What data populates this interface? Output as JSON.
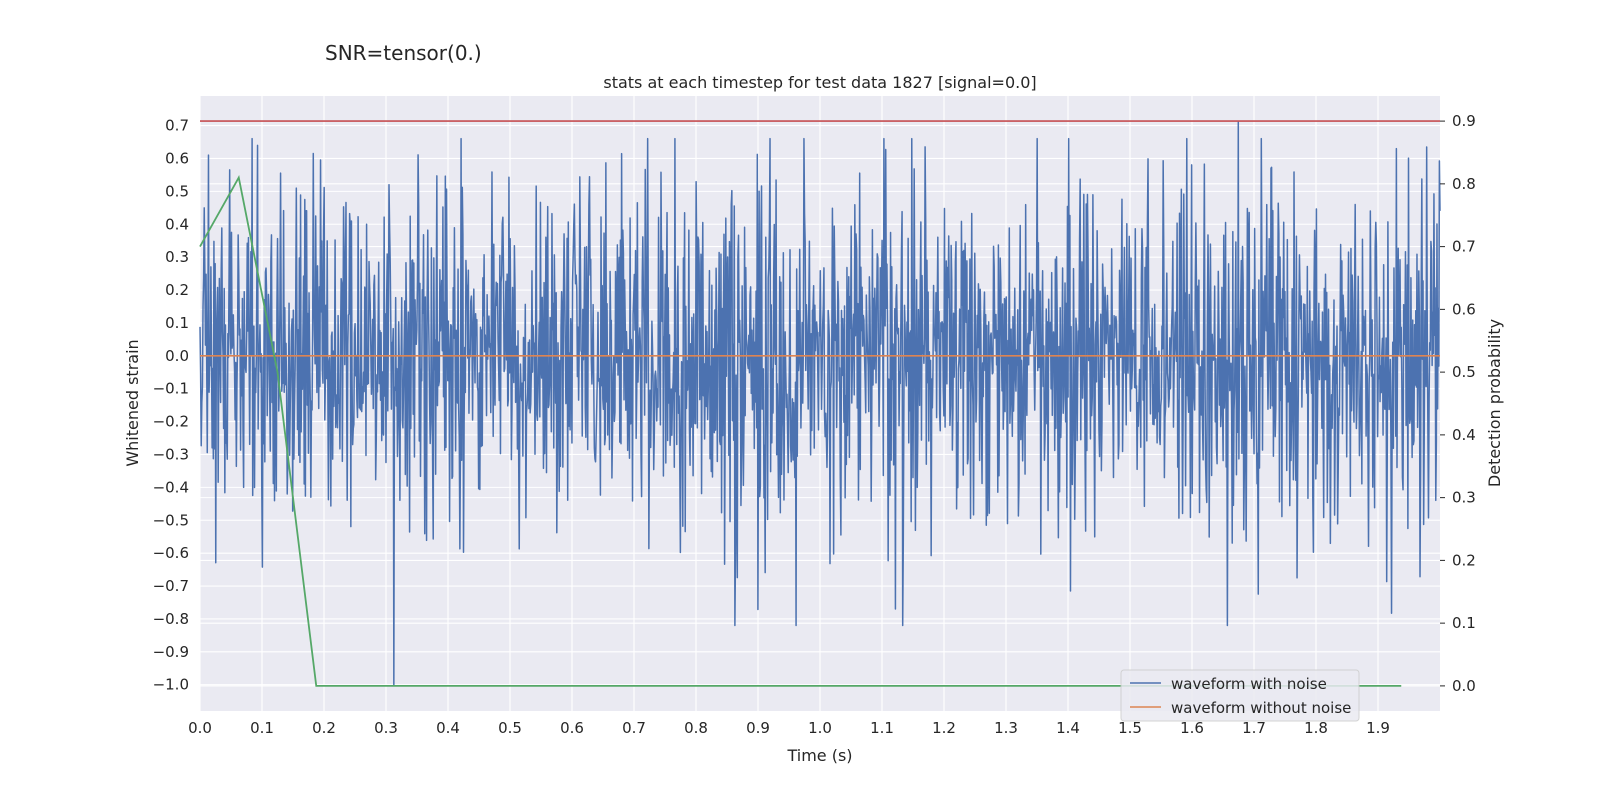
{
  "suptitle": "SNR=tensor(0.)",
  "colors": {
    "noisy": "#4c72b0",
    "clean": "#dd8452",
    "detection": "#55a868",
    "threshold": "#c44e52",
    "axes_bg": "#eaeaf2",
    "grid": "#ffffff"
  },
  "chart_data": {
    "type": "line",
    "title": "stats at each timestep for test data 1827 [signal=0.0]",
    "xlabel": "Time (s)",
    "ylabel": "Whitened strain",
    "ylabel_right": "Detection probability",
    "xlim": [
      0.0,
      2.0
    ],
    "ylim": [
      -1.08,
      0.79
    ],
    "ylim_right": [
      -0.04,
      0.94
    ],
    "xticks": [
      0.0,
      0.1,
      0.2,
      0.3,
      0.4,
      0.5,
      0.6,
      0.7,
      0.8,
      0.9,
      1.0,
      1.1,
      1.2,
      1.3,
      1.4,
      1.5,
      1.6,
      1.7,
      1.8,
      1.9
    ],
    "xtick_labels": [
      "0.0",
      "0.1",
      "0.2",
      "0.3",
      "0.4",
      "0.5",
      "0.6",
      "0.7",
      "0.8",
      "0.9",
      "1.0",
      "1.1",
      "1.2",
      "1.3",
      "1.4",
      "1.5",
      "1.6",
      "1.7",
      "1.8",
      "1.9"
    ],
    "yticks": [
      -1.0,
      -0.9,
      -0.8,
      -0.7,
      -0.6,
      -0.5,
      -0.4,
      -0.3,
      -0.2,
      -0.1,
      0.0,
      0.1,
      0.2,
      0.3,
      0.4,
      0.5,
      0.6,
      0.7
    ],
    "ytick_labels": [
      "−1.0",
      "−0.9",
      "−0.8",
      "−0.7",
      "−0.6",
      "−0.5",
      "−0.4",
      "−0.3",
      "−0.2",
      "−0.1",
      "0.0",
      "0.1",
      "0.2",
      "0.3",
      "0.4",
      "0.5",
      "0.6",
      "0.7"
    ],
    "yticks_right": [
      0.0,
      0.1,
      0.2,
      0.3,
      0.4,
      0.5,
      0.6,
      0.7,
      0.8,
      0.9
    ],
    "ytick_labels_right": [
      "0.0",
      "0.1",
      "0.2",
      "0.3",
      "0.4",
      "0.5",
      "0.6",
      "0.7",
      "0.8",
      "0.9"
    ],
    "grid": true,
    "legend_position": "lower-right",
    "series": [
      {
        "name": "waveform with noise",
        "axis": "left",
        "sampling": {
          "x_start": 0.0,
          "x_end": 2.0,
          "n_points": 2048,
          "mean": 0.0,
          "std": 0.26,
          "min": -1.0,
          "max": 0.71
        },
        "extremes": [
          {
            "x": 0.313,
            "y": -1.0
          },
          {
            "x": 1.675,
            "y": 0.71
          },
          {
            "x": 1.122,
            "y": -0.77
          },
          {
            "x": 0.093,
            "y": 0.64
          },
          {
            "x": 1.93,
            "y": 0.63
          }
        ]
      },
      {
        "name": "waveform without noise",
        "axis": "left",
        "x": [
          0.0,
          2.0
        ],
        "y": [
          0.0,
          0.0
        ]
      },
      {
        "name": "detection probability",
        "axis": "right",
        "x": [
          0.0,
          0.0625,
          0.125,
          0.1875,
          0.25,
          1.9375
        ],
        "y": [
          0.7,
          0.81,
          0.5,
          0.0,
          0.0,
          0.0
        ]
      },
      {
        "name": "threshold",
        "axis": "right",
        "x": [
          0.0,
          2.0
        ],
        "y": [
          0.9,
          0.9
        ]
      }
    ],
    "legend_entries": [
      "waveform with noise",
      "waveform without noise"
    ]
  }
}
